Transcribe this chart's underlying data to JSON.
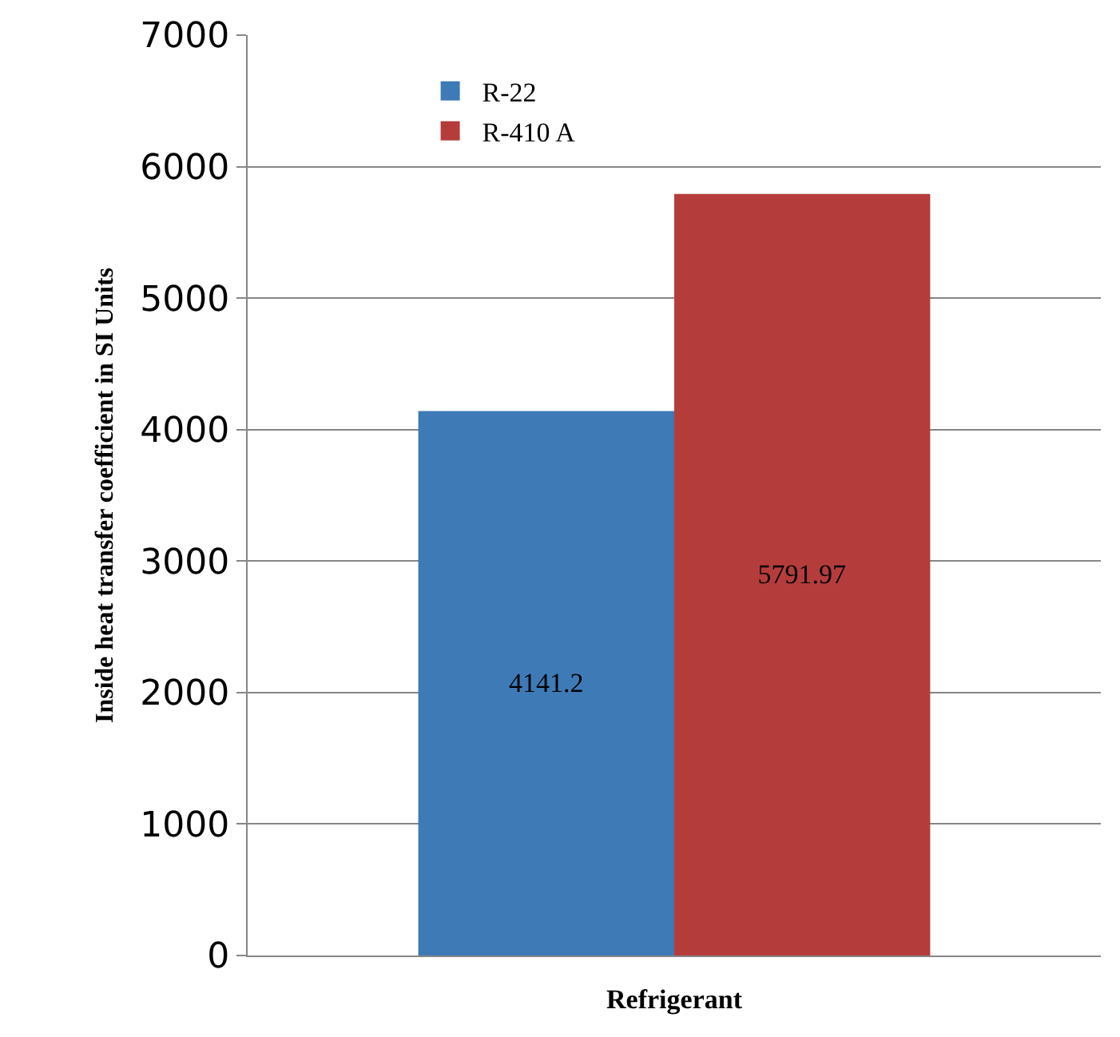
{
  "chart_data": {
    "type": "bar",
    "xlabel": "Refrigerant",
    "ylabel": "Inside heat transfer coefficient in SI Units",
    "categories": [
      null
    ],
    "series": [
      {
        "name": "R-22",
        "color": "#3d7ab6",
        "values": [
          4141.2
        ]
      },
      {
        "name": "R-410 A",
        "color": "#b43d3b",
        "values": [
          5791.97
        ]
      }
    ],
    "ylim": [
      0,
      7000
    ],
    "yticks": [
      0,
      1000,
      2000,
      3000,
      4000,
      5000,
      6000,
      7000
    ],
    "grid": "y",
    "legend": "top left",
    "data_labels": true
  }
}
